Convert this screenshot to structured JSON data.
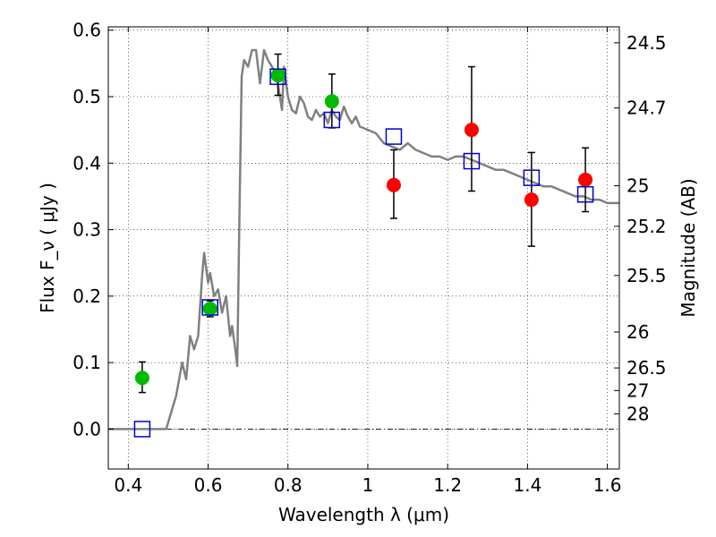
{
  "chart_data": {
    "type": "scatter",
    "xlabel": "Wavelength  λ (μm)",
    "ylabel": "Flux  F_ν  ( μJy )",
    "ylabel_right": "Magnitude (AB)",
    "xlim": [
      0.35,
      1.63
    ],
    "ylim": [
      -0.06,
      0.605
    ],
    "grid": true,
    "x_ticks": [
      0.4,
      0.6,
      0.8,
      1.0,
      1.2,
      1.4,
      1.6
    ],
    "x_tick_labels": [
      "0.4",
      "0.6",
      "0.8",
      "1",
      "1.2",
      "1.4",
      "1.6"
    ],
    "y_ticks": [
      0.0,
      0.1,
      0.2,
      0.3,
      0.4,
      0.5,
      0.6
    ],
    "y_tick_labels": [
      "0.0",
      "0.1",
      "0.2",
      "0.3",
      "0.4",
      "0.5",
      "0.6"
    ],
    "right_ticks": [
      {
        "label": "24.5",
        "flux": 0.581
      },
      {
        "label": "24.7",
        "flux": 0.483
      },
      {
        "label": "25",
        "flux": 0.366
      },
      {
        "label": "25.2",
        "flux": 0.305
      },
      {
        "label": "25.5",
        "flux": 0.231
      },
      {
        "label": "26",
        "flux": 0.146
      },
      {
        "label": "26.5",
        "flux": 0.092
      },
      {
        "label": "27",
        "flux": 0.058
      },
      {
        "label": "28",
        "flux": 0.023
      }
    ],
    "colors": {
      "model": "#808080",
      "green": "#00bb00",
      "red": "#ff0000",
      "box": "#0000cc",
      "errorbar": "#000000"
    },
    "model_spectrum": {
      "x": [
        0.35,
        0.495,
        0.505,
        0.52,
        0.535,
        0.545,
        0.555,
        0.565,
        0.575,
        0.585,
        0.59,
        0.6,
        0.605,
        0.615,
        0.625,
        0.635,
        0.645,
        0.655,
        0.66,
        0.668,
        0.673,
        0.678,
        0.684,
        0.69,
        0.7,
        0.71,
        0.72,
        0.73,
        0.74,
        0.75,
        0.76,
        0.77,
        0.78,
        0.785,
        0.79,
        0.8,
        0.81,
        0.82,
        0.83,
        0.84,
        0.85,
        0.86,
        0.87,
        0.88,
        0.89,
        0.9,
        0.91,
        0.92,
        0.93,
        0.94,
        0.95,
        0.96,
        0.97,
        0.98,
        1.0,
        1.02,
        1.04,
        1.06,
        1.08,
        1.1,
        1.12,
        1.14,
        1.16,
        1.18,
        1.2,
        1.22,
        1.24,
        1.26,
        1.28,
        1.3,
        1.32,
        1.34,
        1.36,
        1.38,
        1.4,
        1.42,
        1.44,
        1.46,
        1.48,
        1.5,
        1.52,
        1.54,
        1.56,
        1.58,
        1.6,
        1.63
      ],
      "y": [
        0.0,
        0.0,
        0.02,
        0.05,
        0.1,
        0.075,
        0.14,
        0.12,
        0.14,
        0.23,
        0.265,
        0.22,
        0.235,
        0.2,
        0.21,
        0.175,
        0.2,
        0.14,
        0.155,
        0.12,
        0.095,
        0.3,
        0.53,
        0.555,
        0.545,
        0.57,
        0.57,
        0.52,
        0.57,
        0.555,
        0.545,
        0.535,
        0.5,
        0.48,
        0.545,
        0.5,
        0.48,
        0.475,
        0.5,
        0.49,
        0.47,
        0.465,
        0.48,
        0.47,
        0.475,
        0.46,
        0.48,
        0.47,
        0.465,
        0.485,
        0.47,
        0.46,
        0.47,
        0.455,
        0.45,
        0.445,
        0.43,
        0.425,
        0.42,
        0.43,
        0.42,
        0.415,
        0.41,
        0.41,
        0.405,
        0.41,
        0.41,
        0.405,
        0.4,
        0.395,
        0.39,
        0.39,
        0.385,
        0.38,
        0.375,
        0.37,
        0.365,
        0.365,
        0.36,
        0.355,
        0.35,
        0.35,
        0.345,
        0.345,
        0.34,
        0.34
      ]
    },
    "series": [
      {
        "marker": "circle-green",
        "x": [
          0.435,
          0.605,
          0.775,
          0.91
        ],
        "y": [
          0.077,
          0.181,
          0.532,
          0.493
        ],
        "yerr_low": [
          0.022,
          0.012,
          0.03,
          0.04
        ],
        "yerr_high": [
          0.024,
          0.012,
          0.032,
          0.041
        ]
      },
      {
        "marker": "circle-red",
        "x": [
          1.065,
          1.26,
          1.41,
          1.545
        ],
        "y": [
          0.367,
          0.45,
          0.345,
          0.375
        ],
        "yerr_low": [
          0.05,
          0.092,
          0.07,
          0.048
        ],
        "yerr_high": [
          0.053,
          0.095,
          0.071,
          0.048
        ]
      },
      {
        "marker": "square-blue",
        "x": [
          0.435,
          0.605,
          0.775,
          0.91,
          1.065,
          1.26,
          1.41,
          1.545
        ],
        "y": [
          0.0,
          0.183,
          0.53,
          0.465,
          0.44,
          0.403,
          0.378,
          0.353
        ]
      }
    ]
  }
}
